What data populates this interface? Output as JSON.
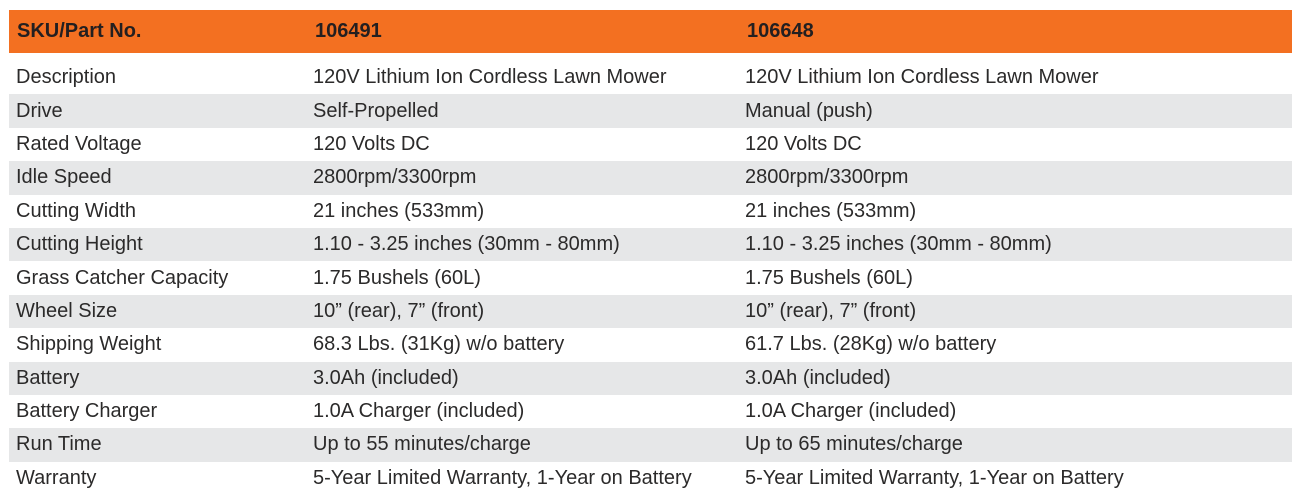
{
  "header": {
    "label": "SKU/Part No.",
    "skus": [
      "106491",
      "106648"
    ]
  },
  "accent_color": "#f37021",
  "rows": [
    {
      "label": "Description",
      "values": [
        "120V Lithium Ion Cordless Lawn Mower",
        "120V Lithium Ion Cordless Lawn Mower"
      ]
    },
    {
      "label": "Drive",
      "values": [
        "Self-Propelled",
        "Manual (push)"
      ]
    },
    {
      "label": "Rated Voltage",
      "values": [
        "120 Volts DC",
        "120 Volts DC"
      ]
    },
    {
      "label": "Idle Speed",
      "values": [
        "2800rpm/3300rpm",
        "2800rpm/3300rpm"
      ]
    },
    {
      "label": "Cutting Width",
      "values": [
        "21 inches (533mm)",
        "21 inches (533mm)"
      ]
    },
    {
      "label": "Cutting Height",
      "values": [
        "1.10 - 3.25 inches (30mm - 80mm)",
        "1.10 - 3.25 inches (30mm - 80mm)"
      ]
    },
    {
      "label": "Grass Catcher Capacity",
      "values": [
        "1.75 Bushels (60L)",
        "1.75 Bushels (60L)"
      ]
    },
    {
      "label": "Wheel Size",
      "values": [
        "10” (rear), 7” (front)",
        "10” (rear), 7” (front)"
      ]
    },
    {
      "label": "Shipping Weight",
      "values": [
        "68.3 Lbs. (31Kg) w/o battery",
        "61.7 Lbs. (28Kg) w/o battery"
      ]
    },
    {
      "label": "Battery",
      "values": [
        "3.0Ah (included)",
        "3.0Ah (included)"
      ]
    },
    {
      "label": "Battery Charger",
      "values": [
        "1.0A Charger (included)",
        "1.0A Charger (included)"
      ]
    },
    {
      "label": "Run Time",
      "values": [
        "Up to 55 minutes/charge",
        "Up to 65 minutes/charge"
      ]
    },
    {
      "label": "Warranty",
      "values": [
        "5-Year Limited Warranty, 1-Year on Battery",
        "5-Year Limited Warranty, 1-Year on Battery"
      ]
    }
  ]
}
